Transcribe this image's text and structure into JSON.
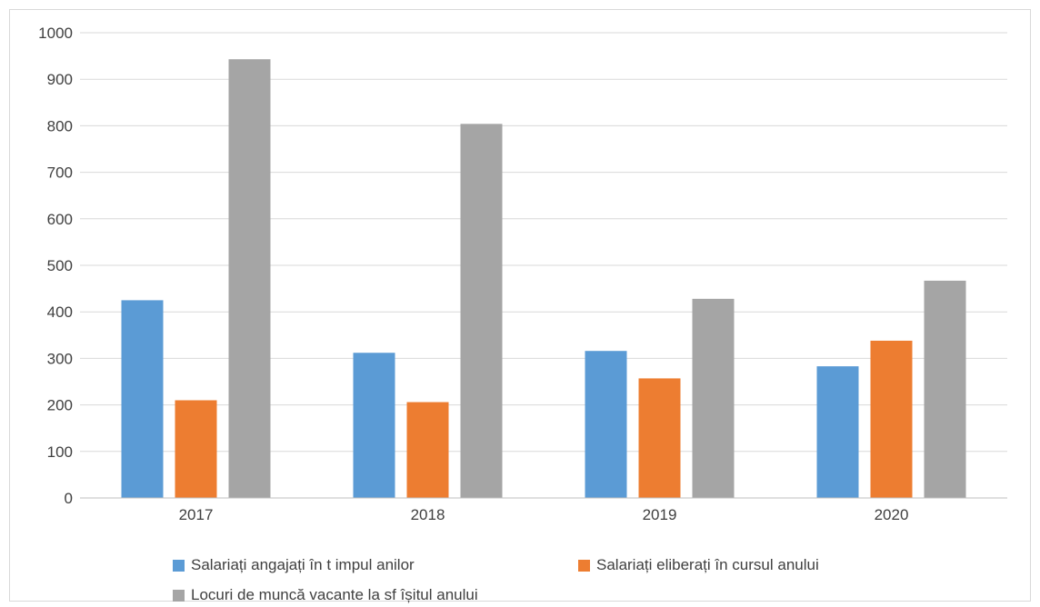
{
  "chart_data": {
    "type": "bar",
    "title": "",
    "xlabel": "",
    "ylabel": "",
    "categories": [
      "2017",
      "2018",
      "2019",
      "2020"
    ],
    "ylim": [
      0,
      1000
    ],
    "yticks": [
      0,
      100,
      200,
      300,
      400,
      500,
      600,
      700,
      800,
      900,
      1000
    ],
    "grid": true,
    "legend_position": "bottom",
    "series": [
      {
        "name": "Salariați angajați în t impul anilor",
        "color": "#5b9bd5",
        "values": [
          425,
          312,
          316,
          283
        ]
      },
      {
        "name": "Salariați eliberați în cursul anului",
        "color": "#ed7d31",
        "values": [
          210,
          206,
          257,
          338
        ]
      },
      {
        "name": "Locuri de muncă vacante la sf îșitul anului",
        "color": "#a5a5a5",
        "values": [
          943,
          804,
          428,
          467
        ]
      }
    ]
  }
}
